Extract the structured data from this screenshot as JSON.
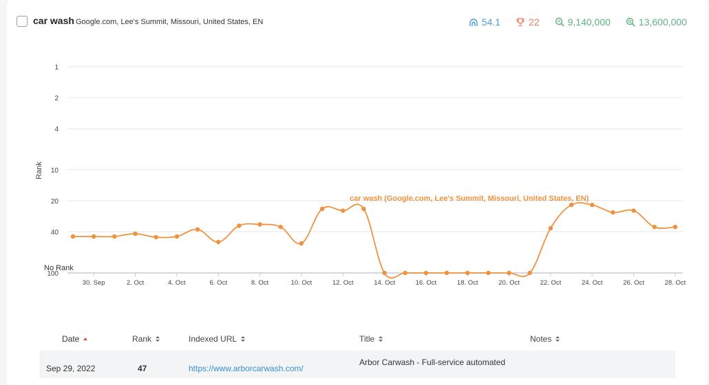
{
  "header": {
    "keyword": "car wash",
    "location": "Google.com, Lee's Summit, Missouri, United States, EN",
    "stats": [
      {
        "icon": "difficulty-icon",
        "value": "54.1",
        "color": "#4a9fd8"
      },
      {
        "icon": "trophy-icon",
        "value": "22",
        "color": "#f07b5e"
      },
      {
        "icon": "search-volume-icon",
        "value": "9,140,000",
        "color": "#5db37e"
      },
      {
        "icon": "results-icon",
        "value": "13,600,000",
        "color": "#5db37e"
      }
    ]
  },
  "chart_data": {
    "type": "line",
    "ylabel": "Rank",
    "y_ticks": [
      "1",
      "2",
      "4",
      "10",
      "20",
      "40",
      "100"
    ],
    "no_rank_label": "No Rank",
    "x_ticks": [
      "30. Sep",
      "2. Oct",
      "4. Oct",
      "6. Oct",
      "8. Oct",
      "10. Oct",
      "12. Oct",
      "14. Oct",
      "16. Oct",
      "18. Oct",
      "20. Oct",
      "22. Oct",
      "24. Oct",
      "26. Oct",
      "28. Oct"
    ],
    "series": [
      {
        "name": "car wash (Google.com, Lee's Summit, Missouri, United States, EN)",
        "color": "#f0913e",
        "dates": [
          "29. Sep",
          "30. Sep",
          "1. Oct",
          "2. Oct",
          "3. Oct",
          "4. Oct",
          "5. Oct",
          "6. Oct",
          "7. Oct",
          "8. Oct",
          "9. Oct",
          "10. Oct",
          "11. Oct",
          "12. Oct",
          "13. Oct",
          "14. Oct",
          "15. Oct",
          "16. Oct",
          "17. Oct",
          "18. Oct",
          "19. Oct",
          "20. Oct",
          "21. Oct",
          "22. Oct",
          "23. Oct",
          "24. Oct",
          "25. Oct",
          "26. Oct",
          "27. Oct",
          "28. Oct"
        ],
        "values": [
          47,
          47,
          47,
          43,
          48,
          47,
          38,
          55,
          35,
          34,
          36,
          57,
          24,
          25,
          24,
          null,
          null,
          null,
          null,
          null,
          null,
          null,
          null,
          37,
          22,
          22,
          26,
          25,
          36,
          36
        ]
      }
    ]
  },
  "table": {
    "columns": [
      {
        "label": "Date",
        "sort": "asc-active"
      },
      {
        "label": "Rank",
        "sort": "both"
      },
      {
        "label": "Indexed URL",
        "sort": "both"
      },
      {
        "label": "Title",
        "sort": "both"
      },
      {
        "label": "Notes",
        "sort": "both"
      }
    ],
    "rows": [
      {
        "date": "Sep 29, 2022",
        "rank": "47",
        "url": "https://www.arborcarwash.com/",
        "title": "Arbor Carwash - Full-service automated"
      }
    ]
  }
}
